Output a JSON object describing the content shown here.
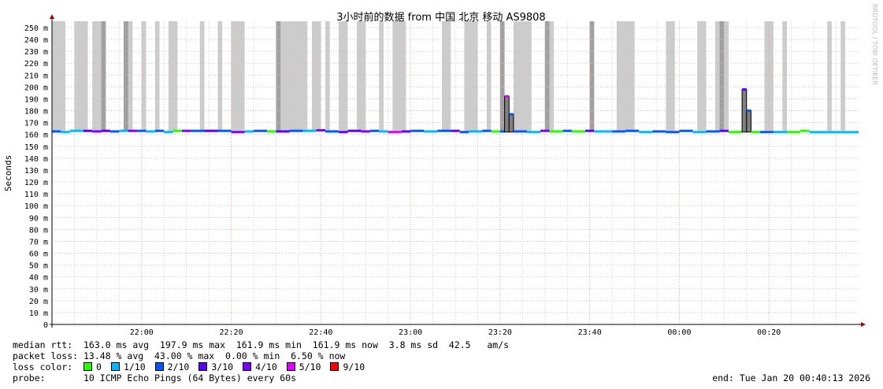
{
  "chart_data": {
    "type": "line",
    "title": "3小时前的数据 from 中国 北京 移动 AS9808",
    "ylabel": "Seconds",
    "watermark": "RRDTOOL / TOBI OETIKER",
    "ylim": [
      0,
      0.25
    ],
    "yticks": [
      "0",
      "10 m",
      "20 m",
      "30 m",
      "40 m",
      "50 m",
      "60 m",
      "70 m",
      "80 m",
      "90 m",
      "100 m",
      "110 m",
      "120 m",
      "130 m",
      "140 m",
      "150 m",
      "160 m",
      "170 m",
      "180 m",
      "190 m",
      "200 m",
      "210 m",
      "220 m",
      "230 m",
      "240 m",
      "250 m"
    ],
    "xrange": [
      "21:40",
      "00:40"
    ],
    "xticks": [
      "22:00",
      "22:20",
      "22:40",
      "23:00",
      "23:20",
      "23:40",
      "00:00",
      "00:20",
      "00:40"
    ],
    "grid": true,
    "smoke_bands": [
      [
        "21:40",
        "21:43",
        "light"
      ],
      [
        "21:45",
        "21:48",
        "light"
      ],
      [
        "21:49",
        "21:52",
        "light"
      ],
      [
        "21:51",
        "21:52",
        "dark"
      ],
      [
        "21:56",
        "21:58",
        "light"
      ],
      [
        "21:56",
        "21:57",
        "dark"
      ],
      [
        "22:00",
        "22:01",
        "light"
      ],
      [
        "22:03",
        "22:04",
        "light"
      ],
      [
        "22:06",
        "22:08",
        "light"
      ],
      [
        "22:13",
        "22:14",
        "light"
      ],
      [
        "22:17",
        "22:18",
        "light"
      ],
      [
        "22:20",
        "22:23",
        "light"
      ],
      [
        "22:30",
        "22:37",
        "light"
      ],
      [
        "22:30",
        "22:31",
        "dark"
      ],
      [
        "22:38",
        "22:40",
        "light"
      ],
      [
        "22:41",
        "22:42",
        "light"
      ],
      [
        "22:44",
        "22:46",
        "light"
      ],
      [
        "22:48",
        "22:50",
        "light"
      ],
      [
        "22:53",
        "22:54",
        "light"
      ],
      [
        "22:56",
        "22:59",
        "light"
      ],
      [
        "23:07",
        "23:09",
        "light"
      ],
      [
        "23:12",
        "23:15",
        "light"
      ],
      [
        "23:17",
        "23:18",
        "light"
      ],
      [
        "23:20",
        "23:21",
        "dark"
      ],
      [
        "23:23",
        "23:27",
        "light"
      ],
      [
        "23:30",
        "23:32",
        "light"
      ],
      [
        "23:30",
        "23:31",
        "dark"
      ],
      [
        "23:40",
        "23:41",
        "dark"
      ],
      [
        "23:46",
        "23:50",
        "light"
      ],
      [
        "23:57",
        "23:59",
        "light"
      ],
      [
        "00:04",
        "00:06",
        "light"
      ],
      [
        "00:08",
        "00:11",
        "light"
      ],
      [
        "00:09",
        "00:10",
        "dark"
      ],
      [
        "00:19",
        "00:21",
        "light"
      ],
      [
        "00:23",
        "00:24",
        "light"
      ],
      [
        "00:33",
        "00:34",
        "light"
      ],
      [
        "00:36",
        "00:37",
        "light"
      ]
    ],
    "median_series": [
      [
        "21:40",
        "21:42",
        162.5,
        "2/10"
      ],
      [
        "21:42",
        "21:44",
        162.0,
        "1/10"
      ],
      [
        "21:44",
        "21:47",
        163.0,
        "1/10"
      ],
      [
        "21:47",
        "21:49",
        163.0,
        "3/10"
      ],
      [
        "21:49",
        "21:51",
        162.5,
        "4/10"
      ],
      [
        "21:51",
        "21:53",
        163.0,
        "3/10"
      ],
      [
        "21:53",
        "21:55",
        162.5,
        "2/10"
      ],
      [
        "21:55",
        "21:57",
        163.0,
        "1/10"
      ],
      [
        "21:57",
        "21:59",
        163.0,
        "4/10"
      ],
      [
        "21:59",
        "22:01",
        163.0,
        "2/10"
      ],
      [
        "22:01",
        "22:03",
        162.5,
        "1/10"
      ],
      [
        "22:03",
        "22:05",
        163.0,
        "2/10"
      ],
      [
        "22:05",
        "22:07",
        162.0,
        "1/10"
      ],
      [
        "22:07",
        "22:09",
        163.0,
        "0"
      ],
      [
        "22:09",
        "22:11",
        163.0,
        "4/10"
      ],
      [
        "22:11",
        "22:14",
        163.0,
        "2/10"
      ],
      [
        "22:14",
        "22:17",
        163.0,
        "3/10"
      ],
      [
        "22:17",
        "22:20",
        163.0,
        "2/10"
      ],
      [
        "22:20",
        "22:23",
        162.0,
        "4/10"
      ],
      [
        "22:23",
        "22:25",
        162.5,
        "1/10"
      ],
      [
        "22:25",
        "22:28",
        163.0,
        "2/10"
      ],
      [
        "22:28",
        "22:30",
        162.5,
        "0"
      ],
      [
        "22:30",
        "22:33",
        162.5,
        "3/10"
      ],
      [
        "22:33",
        "22:36",
        163.0,
        "2/10"
      ],
      [
        "22:36",
        "22:39",
        163.0,
        "1/10"
      ],
      [
        "22:39",
        "22:41",
        163.5,
        "4/10"
      ],
      [
        "22:41",
        "22:44",
        162.5,
        "2/10"
      ],
      [
        "22:44",
        "22:46",
        162.0,
        "3/10"
      ],
      [
        "22:46",
        "22:49",
        163.0,
        "3/10"
      ],
      [
        "22:49",
        "22:51",
        162.5,
        "4/10"
      ],
      [
        "22:51",
        "22:53",
        163.0,
        "2/10"
      ],
      [
        "22:53",
        "22:55",
        162.5,
        "1/10"
      ],
      [
        "22:55",
        "22:58",
        162.0,
        "5/10"
      ],
      [
        "22:58",
        "23:00",
        162.5,
        "3/10"
      ],
      [
        "23:00",
        "23:03",
        163.0,
        "2/10"
      ],
      [
        "23:03",
        "23:06",
        162.5,
        "1/10"
      ],
      [
        "23:06",
        "23:09",
        163.0,
        "2/10"
      ],
      [
        "23:09",
        "23:11",
        163.0,
        "3/10"
      ],
      [
        "23:11",
        "23:13",
        162.0,
        "2/10"
      ],
      [
        "23:13",
        "23:16",
        162.5,
        "1/10"
      ],
      [
        "23:16",
        "23:18",
        163.0,
        "2/10"
      ],
      [
        "23:18",
        "23:20",
        162.5,
        "0"
      ],
      [
        "23:20",
        "23:21",
        162.5,
        "2/10"
      ],
      [
        "23:21",
        "23:22",
        192.0,
        "5/10"
      ],
      [
        "23:22",
        "23:23",
        177.0,
        "2/10"
      ],
      [
        "23:23",
        "23:26",
        162.5,
        "2/10"
      ],
      [
        "23:26",
        "23:29",
        162.0,
        "1/10"
      ],
      [
        "23:29",
        "23:31",
        163.0,
        "4/10"
      ],
      [
        "23:31",
        "23:34",
        162.5,
        "0"
      ],
      [
        "23:34",
        "23:36",
        163.0,
        "2/10"
      ],
      [
        "23:36",
        "23:39",
        162.5,
        "0"
      ],
      [
        "23:39",
        "23:41",
        163.0,
        "3/10"
      ],
      [
        "23:41",
        "23:45",
        162.5,
        "1/10"
      ],
      [
        "23:45",
        "23:48",
        162.5,
        "2/10"
      ],
      [
        "23:48",
        "23:51",
        163.0,
        "2/10"
      ],
      [
        "23:51",
        "23:54",
        162.0,
        "1/10"
      ],
      [
        "23:54",
        "23:57",
        162.5,
        "2/10"
      ],
      [
        "23:57",
        "00:00",
        162.0,
        "2/10"
      ],
      [
        "00:00",
        "00:03",
        163.0,
        "2/10"
      ],
      [
        "00:03",
        "00:06",
        162.0,
        "1/10"
      ],
      [
        "00:06",
        "00:09",
        162.5,
        "2/10"
      ],
      [
        "00:09",
        "00:11",
        163.0,
        "3/10"
      ],
      [
        "00:11",
        "00:14",
        162.0,
        "0"
      ],
      [
        "00:14",
        "00:15",
        197.9,
        "3/10"
      ],
      [
        "00:15",
        "00:16",
        180.0,
        "2/10"
      ],
      [
        "00:16",
        "00:18",
        162.0,
        "0"
      ],
      [
        "00:18",
        "00:21",
        162.0,
        "2/10"
      ],
      [
        "00:21",
        "00:24",
        162.0,
        "1/10"
      ],
      [
        "00:24",
        "00:27",
        162.0,
        "0"
      ],
      [
        "00:27",
        "00:29",
        163.0,
        "0"
      ],
      [
        "00:29",
        "00:33",
        161.9,
        "1/10"
      ],
      [
        "00:33",
        "00:37",
        161.9,
        "1/10"
      ],
      [
        "00:37",
        "00:40",
        161.9,
        "1/10"
      ]
    ],
    "loss_colors": {
      "0": "#26ff00",
      "1/10": "#00b8ff",
      "2/10": "#0059ff",
      "3/10": "#5e00ff",
      "4/10": "#7e00ff",
      "5/10": "#dd00ff",
      "9/10": "#ff0000"
    }
  },
  "legend": {
    "median_rtt": "median rtt:  163.0 ms avg  197.9 ms max  161.9 ms min  161.9 ms now  3.8 ms sd  42.5   am/s",
    "packet_loss": "packet loss: 13.48 % avg  43.00 % max  0.00 % min  6.50 % now",
    "loss_color_label": "loss color:  ",
    "loss_items": [
      {
        "label": "0",
        "color": "#26ff00"
      },
      {
        "label": "1/10",
        "color": "#00b8ff"
      },
      {
        "label": "2/10",
        "color": "#0059ff"
      },
      {
        "label": "3/10",
        "color": "#5e00ff"
      },
      {
        "label": "4/10",
        "color": "#7e00ff"
      },
      {
        "label": "5/10",
        "color": "#dd00ff"
      },
      {
        "label": "9/10",
        "color": "#ff0000"
      }
    ],
    "probe": "probe:       10 ICMP Echo Pings (64 Bytes) every 60s",
    "end": "end: Tue Jan 20 00:40:13 2026"
  }
}
